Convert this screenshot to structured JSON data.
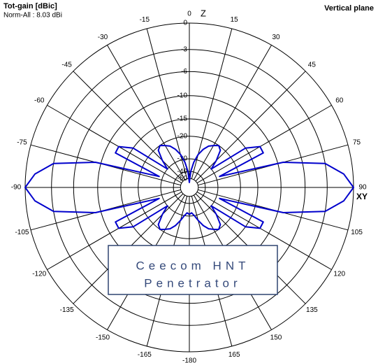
{
  "chart_data": {
    "type": "polar",
    "title": "Tot-gain [dBic]",
    "subtitle": "Norm-All : 8.03 dBi",
    "plane": "Vertical plane",
    "z_label": "Z",
    "xy_label": "XY",
    "annotation": [
      "Ceecom HNT",
      "Penetrator"
    ],
    "rscale": "arrl",
    "rticks": [
      0,
      -3,
      -6,
      -10,
      -15,
      -20,
      -30,
      -40,
      -50
    ],
    "thetaticks": [
      0,
      15,
      30,
      45,
      60,
      75,
      90,
      105,
      120,
      135,
      150,
      165,
      -180,
      -165,
      -150,
      -135,
      -120,
      -105,
      -90,
      -75,
      -60,
      -45,
      -30,
      -15
    ],
    "grid": true,
    "series": [
      {
        "name": "Tot-gain",
        "color": "#0000cc",
        "theta": [
          -180,
          -175,
          -170,
          -165,
          -160,
          -155,
          -150,
          -145,
          -140,
          -135,
          -130,
          -125,
          -120,
          -115,
          -110,
          -105,
          -100,
          -95,
          -90,
          -85,
          -80,
          -75,
          -70,
          -65,
          -60,
          -55,
          -50,
          -45,
          -40,
          -35,
          -30,
          -25,
          -20,
          -15,
          -10,
          -5,
          0,
          5,
          10,
          15,
          20,
          25,
          30,
          35,
          40,
          45,
          50,
          55,
          60,
          65,
          70,
          75,
          80,
          85,
          90,
          95,
          100,
          105,
          110,
          115,
          120,
          125,
          130,
          135,
          140,
          145,
          150,
          155,
          160,
          165,
          170,
          175,
          180
        ],
        "values": [
          -31,
          -32,
          -30,
          -27,
          -24,
          -22,
          -21,
          -20,
          -21,
          -25,
          -30,
          -15,
          -12,
          -12,
          -28,
          -9,
          -3,
          -1,
          0,
          -1,
          -3,
          -9,
          -28,
          -12,
          -12,
          -15,
          -30,
          -25,
          -21,
          -20,
          -21,
          -22,
          -24,
          -27,
          -32,
          -40,
          -60,
          -40,
          -32,
          -27,
          -24,
          -22,
          -21,
          -20,
          -21,
          -25,
          -30,
          -15,
          -12,
          -12,
          -28,
          -9,
          -3,
          -1,
          0,
          -1,
          -3,
          -9,
          -28,
          -12,
          -12,
          -15,
          -30,
          -25,
          -21,
          -20,
          -21,
          -22,
          -24,
          -27,
          -30,
          -32,
          -31
        ]
      }
    ]
  }
}
